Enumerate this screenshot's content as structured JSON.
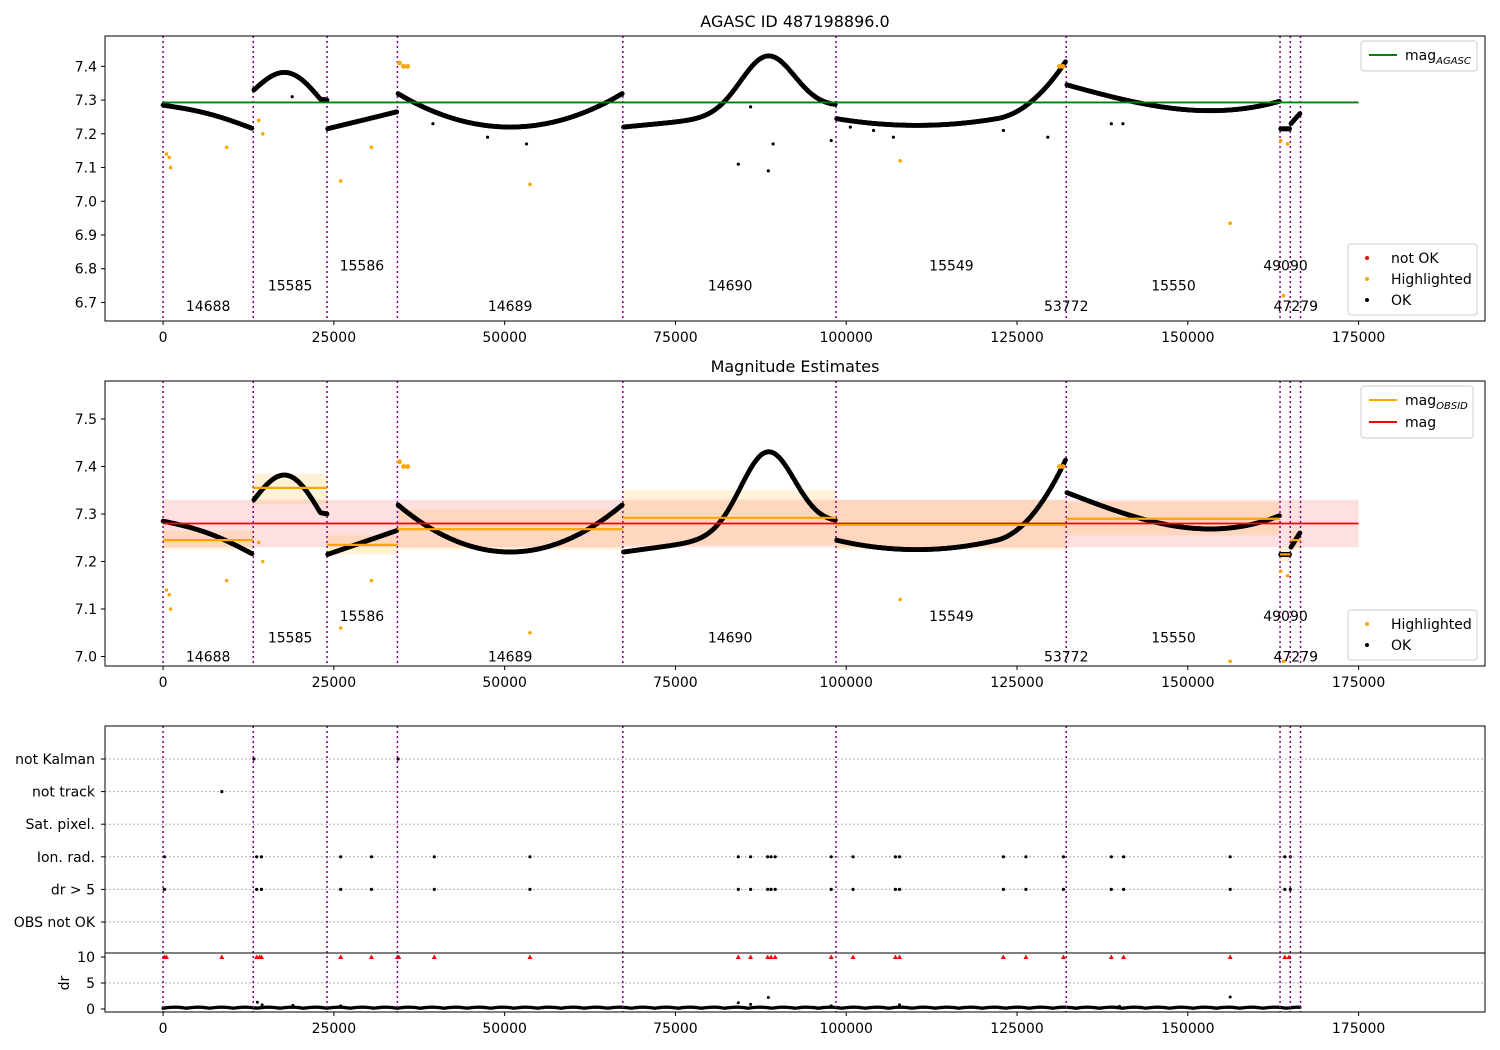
{
  "chart_data": [
    {
      "type": "scatter",
      "title": "AGASC ID 487198896.0",
      "xlabel": "",
      "ylabel": "",
      "xlim": [
        -8500,
        193500
      ],
      "ylim": [
        6.645,
        7.49
      ],
      "x_ticks": [
        0,
        25000,
        50000,
        75000,
        100000,
        125000,
        150000,
        175000
      ],
      "y_ticks": [
        6.7,
        6.8,
        6.9,
        7.0,
        7.1,
        7.2,
        7.3,
        7.4
      ],
      "grid": false,
      "legend": {
        "placement_top": "top-right",
        "placement_bottom": "bottom-right",
        "line_entries": [
          {
            "label": "mag",
            "subscript": "AGASC",
            "color": "#008000"
          }
        ],
        "marker_entries": [
          {
            "label": "not OK",
            "color": "#ff0000"
          },
          {
            "label": "Highlighted",
            "color": "#ffa500"
          },
          {
            "label": "OK",
            "color": "#000000"
          }
        ]
      },
      "reference_lines": [
        {
          "name": "mag_AGASC",
          "y": 7.293,
          "x_range": [
            0,
            175000
          ],
          "color": "#008000"
        }
      ],
      "obsid_boundaries": [
        0,
        13200,
        24000,
        34300,
        67300,
        98500,
        132200,
        163500,
        165000,
        166500
      ],
      "obsid_labels": [
        {
          "text": "14688",
          "x": 6600,
          "y": 6.69
        },
        {
          "text": "15585",
          "x": 18600,
          "y": 6.75
        },
        {
          "text": "15586",
          "x": 29100,
          "y": 6.81
        },
        {
          "text": "14689",
          "x": 50800,
          "y": 6.69
        },
        {
          "text": "14690",
          "x": 83000,
          "y": 6.75
        },
        {
          "text": "15549",
          "x": 115400,
          "y": 6.81
        },
        {
          "text": "53772",
          "x": 132200,
          "y": 6.69
        },
        {
          "text": "15550",
          "x": 147900,
          "y": 6.75
        },
        {
          "text": "49090",
          "x": 164300,
          "y": 6.81
        },
        {
          "text": "47279",
          "x": 165800,
          "y": 6.69
        }
      ],
      "highlighted_points": [
        {
          "x": 500,
          "y": 7.14
        },
        {
          "x": 900,
          "y": 7.13
        },
        {
          "x": 1100,
          "y": 7.1
        },
        {
          "x": 9300,
          "y": 7.16
        },
        {
          "x": 14000,
          "y": 7.24
        },
        {
          "x": 14600,
          "y": 7.2
        },
        {
          "x": 26000,
          "y": 7.06
        },
        {
          "x": 30500,
          "y": 7.16
        },
        {
          "x": 53700,
          "y": 7.05
        },
        {
          "x": 107900,
          "y": 7.12
        },
        {
          "x": 156200,
          "y": 6.935
        },
        {
          "x": 163600,
          "y": 7.18
        },
        {
          "x": 164600,
          "y": 7.17
        },
        {
          "x": 164000,
          "y": 6.72
        }
      ],
      "ok_outliers": [
        {
          "x": 18900,
          "y": 7.31
        },
        {
          "x": 39500,
          "y": 7.23
        },
        {
          "x": 47500,
          "y": 7.19
        },
        {
          "x": 53200,
          "y": 7.17
        },
        {
          "x": 84200,
          "y": 7.11
        },
        {
          "x": 86000,
          "y": 7.28
        },
        {
          "x": 88600,
          "y": 7.09
        },
        {
          "x": 89300,
          "y": 7.17
        },
        {
          "x": 97800,
          "y": 7.18
        },
        {
          "x": 100600,
          "y": 7.22
        },
        {
          "x": 104000,
          "y": 7.21
        },
        {
          "x": 106900,
          "y": 7.19
        },
        {
          "x": 138800,
          "y": 7.23
        },
        {
          "x": 140500,
          "y": 7.23
        },
        {
          "x": 129500,
          "y": 7.19
        },
        {
          "x": 123000,
          "y": 7.21
        }
      ]
    },
    {
      "type": "scatter",
      "title": "Magnitude Estimates",
      "xlabel": "",
      "ylabel": "",
      "xlim": [
        -8500,
        193500
      ],
      "ylim": [
        6.98,
        7.58
      ],
      "x_ticks": [
        0,
        25000,
        50000,
        75000,
        100000,
        125000,
        150000,
        175000
      ],
      "y_ticks": [
        7.0,
        7.1,
        7.2,
        7.3,
        7.4,
        7.5
      ],
      "grid": false,
      "legend": {
        "placement_top": "top-right",
        "placement_bottom": "bottom-right",
        "line_entries": [
          {
            "label": "mag",
            "subscript": "OBSID",
            "color": "#ffa500"
          },
          {
            "label": "mag",
            "subscript": "",
            "color": "#ff0000"
          }
        ],
        "marker_entries": [
          {
            "label": "Highlighted",
            "color": "#ffa500"
          },
          {
            "label": "OK",
            "color": "#000000"
          }
        ]
      },
      "overall_mag": {
        "y": 7.28,
        "band": [
          7.23,
          7.33
        ],
        "x_range": [
          0,
          175000
        ],
        "color": "#ff0000"
      },
      "obsid_mags": [
        {
          "x_range": [
            0,
            13200
          ],
          "y": 7.245,
          "band": [
            7.225,
            7.265
          ]
        },
        {
          "x_range": [
            13200,
            24000
          ],
          "y": 7.355,
          "band": [
            7.32,
            7.385
          ]
        },
        {
          "x_range": [
            24000,
            34300
          ],
          "y": 7.235,
          "band": [
            7.215,
            7.255
          ]
        },
        {
          "x_range": [
            34300,
            67300
          ],
          "y": 7.268,
          "band": [
            7.225,
            7.31
          ]
        },
        {
          "x_range": [
            67300,
            98500
          ],
          "y": 7.292,
          "band": [
            7.235,
            7.35
          ]
        },
        {
          "x_range": [
            98500,
            132200
          ],
          "y": 7.277,
          "band": [
            7.225,
            7.33
          ]
        },
        {
          "x_range": [
            132200,
            163500
          ],
          "y": 7.29,
          "band": [
            7.255,
            7.325
          ]
        },
        {
          "x_range": [
            163500,
            165000
          ],
          "y": 7.215,
          "band": [
            7.2,
            7.23
          ]
        },
        {
          "x_range": [
            165000,
            166500
          ],
          "y": 7.245,
          "band": [
            7.225,
            7.265
          ]
        }
      ],
      "obsid_boundaries": [
        0,
        13200,
        24000,
        34300,
        67300,
        98500,
        132200,
        163500,
        165000,
        166500
      ],
      "obsid_labels": [
        {
          "text": "14688",
          "x": 6600,
          "y": 7.0
        },
        {
          "text": "15585",
          "x": 18600,
          "y": 7.04
        },
        {
          "text": "15586",
          "x": 29100,
          "y": 7.085
        },
        {
          "text": "14689",
          "x": 50800,
          "y": 7.0
        },
        {
          "text": "14690",
          "x": 83000,
          "y": 7.04
        },
        {
          "text": "15549",
          "x": 115400,
          "y": 7.085
        },
        {
          "text": "53772",
          "x": 132200,
          "y": 7.0
        },
        {
          "text": "15550",
          "x": 147900,
          "y": 7.04
        },
        {
          "text": "49090",
          "x": 164300,
          "y": 7.085
        },
        {
          "text": "47279",
          "x": 165800,
          "y": 7.0
        }
      ],
      "highlighted_points": [
        {
          "x": 500,
          "y": 7.14
        },
        {
          "x": 900,
          "y": 7.13
        },
        {
          "x": 1100,
          "y": 7.1
        },
        {
          "x": 9300,
          "y": 7.16
        },
        {
          "x": 14000,
          "y": 7.24
        },
        {
          "x": 14600,
          "y": 7.2
        },
        {
          "x": 26000,
          "y": 7.06
        },
        {
          "x": 30500,
          "y": 7.16
        },
        {
          "x": 53700,
          "y": 7.05
        },
        {
          "x": 107900,
          "y": 7.12
        },
        {
          "x": 156200,
          "y": 6.99
        },
        {
          "x": 163600,
          "y": 7.18
        },
        {
          "x": 164600,
          "y": 7.17
        },
        {
          "x": 164000,
          "y": 6.99
        }
      ]
    },
    {
      "type": "scatter",
      "title": "",
      "xlabel": "",
      "ylabel": "dr",
      "xlim": [
        -8500,
        193500
      ],
      "flag_rows": [
        "not Kalman",
        "not track",
        "Sat. pixel.",
        "Ion. rad.",
        "dr > 5",
        "OBS not OK"
      ],
      "flag_points": {
        "not Kalman": [
          13300,
          34400
        ],
        "not track": [
          8600
        ],
        "Sat. pixel.": [],
        "Ion. rad.": [
          200,
          13700,
          14400,
          26000,
          30500,
          39700,
          53700,
          84200,
          86000,
          88500,
          89000,
          89600,
          97800,
          101000,
          107200,
          107800,
          123000,
          126300,
          131800,
          138800,
          140600,
          156200,
          164200,
          165000
        ],
        "dr > 5": [
          200,
          13700,
          14400,
          26000,
          30500,
          39700,
          53700,
          84200,
          86000,
          88500,
          89000,
          89600,
          97800,
          101000,
          107200,
          107800,
          123000,
          126300,
          131800,
          138800,
          140600,
          156200,
          164200,
          165000
        ],
        "OBS not OK": []
      },
      "dr_ylim": [
        0,
        11
      ],
      "dr_ticks": [
        0,
        5,
        10
      ],
      "dr_clipped_points_x": [
        200,
        500,
        8600,
        13700,
        14100,
        14400,
        26000,
        30500,
        34300,
        34500,
        39700,
        53700,
        84200,
        86000,
        88500,
        89000,
        89600,
        97800,
        101000,
        107200,
        107800,
        123000,
        126300,
        131800,
        138800,
        140600,
        156200,
        164200,
        164800
      ],
      "dr_outliers": [
        {
          "x": 13800,
          "y": 1.3
        },
        {
          "x": 14500,
          "y": 0.8
        },
        {
          "x": 19000,
          "y": 0.7
        },
        {
          "x": 26000,
          "y": 0.6
        },
        {
          "x": 84200,
          "y": 1.2
        },
        {
          "x": 86000,
          "y": 0.9
        },
        {
          "x": 88600,
          "y": 2.2
        },
        {
          "x": 107800,
          "y": 0.8
        },
        {
          "x": 156200,
          "y": 2.3
        },
        {
          "x": 140000,
          "y": 0.5
        },
        {
          "x": 97800,
          "y": 0.6
        }
      ],
      "obsid_boundaries": [
        0,
        13200,
        24000,
        34300,
        67300,
        98500,
        132200,
        163500,
        165000,
        166500
      ]
    }
  ],
  "colors": {
    "ok": "#000000",
    "highlighted": "#ffa500",
    "not_ok": "#ff0000",
    "agasc_line": "#008000",
    "obsid_line": "#ffa500",
    "mag_line": "#ff0000",
    "boundary": "#800080",
    "flag_grid": "#b0b0b0"
  }
}
